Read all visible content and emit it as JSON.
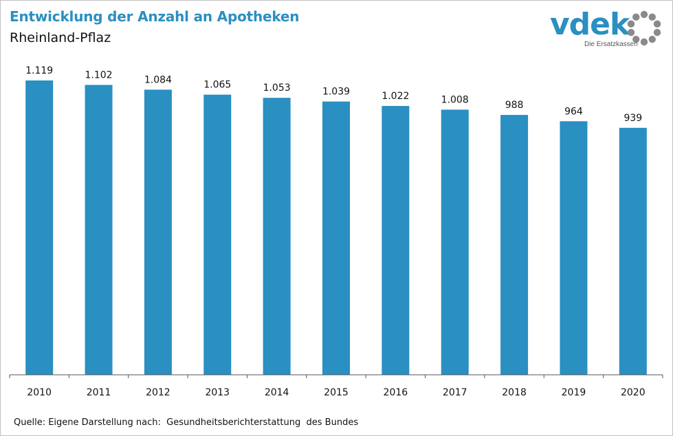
{
  "header": {
    "title": "Entwicklung der Anzahl an Apotheken",
    "subtitle": "Rheinland-Pflaz"
  },
  "logo": {
    "word": "vdek",
    "tagline": "Die Ersatzkassen",
    "color": "#2a8fc1",
    "ring_color": "#8a8a8a"
  },
  "footer": {
    "source": "Quelle: Eigene Darstellung nach:  Gesundheitsberichterstattung  des Bundes"
  },
  "chart_data": {
    "type": "bar",
    "categories": [
      "2010",
      "2011",
      "2012",
      "2013",
      "2014",
      "2015",
      "2016",
      "2017",
      "2018",
      "2019",
      "2020"
    ],
    "values": [
      1119,
      1102,
      1084,
      1065,
      1053,
      1039,
      1022,
      1008,
      988,
      964,
      939
    ],
    "value_labels": [
      "1.119",
      "1.102",
      "1.084",
      "1.065",
      "1.053",
      "1.039",
      "1.022",
      "1.008",
      "988",
      "964",
      "939"
    ],
    "title": "Entwicklung der Anzahl an Apotheken",
    "subtitle": "Rheinland-Pflaz",
    "xlabel": "",
    "ylabel": "",
    "ylim": [
      0,
      1119
    ],
    "bar_color": "#2a8fc1",
    "grid": false,
    "legend": "none"
  }
}
